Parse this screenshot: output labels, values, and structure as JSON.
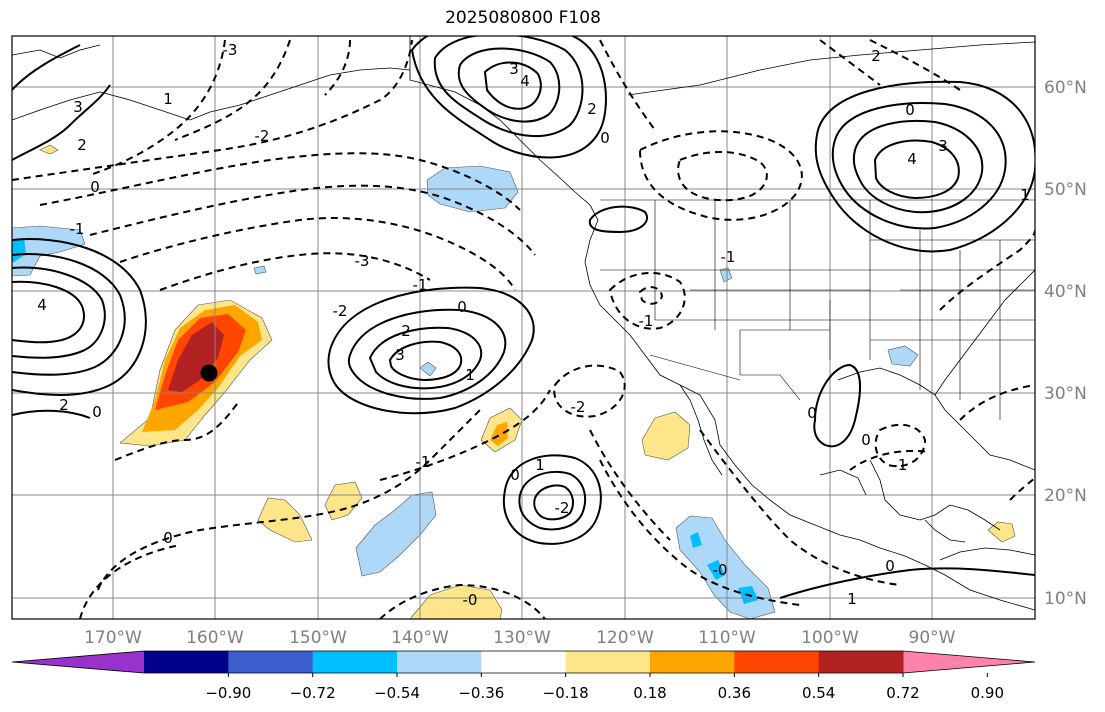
{
  "title": "2025080800 F108",
  "lon_labels": [
    "170°W",
    "160°W",
    "150°W",
    "140°W",
    "130°W",
    "120°W",
    "110°W",
    "100°W",
    "90°W"
  ],
  "lat_labels": [
    "60°N",
    "50°N",
    "40°N",
    "30°N",
    "20°N",
    "10°N"
  ],
  "colorbar": {
    "ticks": [
      "−0.90",
      "−0.72",
      "−0.54",
      "−0.36",
      "−0.18",
      "0.18",
      "0.36",
      "0.54",
      "0.72",
      "0.90"
    ],
    "colors": [
      "#9932cc",
      "#00008b",
      "#3a5fcd",
      "#00bfff",
      "#add8f7",
      "#ffffff",
      "#fde68a",
      "#ffa500",
      "#ff4500",
      "#b22222",
      "#ff82ab"
    ]
  },
  "contour_labels": [
    {
      "t": "3"
    },
    {
      "t": "2"
    },
    {
      "t": "1"
    },
    {
      "t": "0"
    },
    {
      "t": "-1"
    },
    {
      "t": "-2"
    },
    {
      "t": "-3"
    },
    {
      "t": "4"
    },
    {
      "t": "2"
    },
    {
      "t": "3"
    },
    {
      "t": "4"
    },
    {
      "t": "0"
    },
    {
      "t": "-2"
    },
    {
      "t": "-1"
    },
    {
      "t": "-3"
    },
    {
      "t": "-2"
    },
    {
      "t": "0"
    },
    {
      "t": "1"
    },
    {
      "t": "2"
    },
    {
      "t": "3"
    },
    {
      "t": "0"
    },
    {
      "t": "-1"
    },
    {
      "t": "-2"
    },
    {
      "t": "0"
    },
    {
      "t": "4"
    },
    {
      "t": "3"
    },
    {
      "t": "2"
    },
    {
      "t": "0"
    },
    {
      "t": "1"
    },
    {
      "t": "-1"
    },
    {
      "t": "0"
    },
    {
      "t": "-1"
    },
    {
      "t": "1"
    },
    {
      "t": "2"
    },
    {
      "t": "0"
    },
    {
      "t": "-0"
    },
    {
      "t": "0"
    },
    {
      "t": "1"
    },
    {
      "t": "-0"
    },
    {
      "t": "-1"
    },
    {
      "t": "0"
    }
  ],
  "marker_icon": "storm-center-dot"
}
